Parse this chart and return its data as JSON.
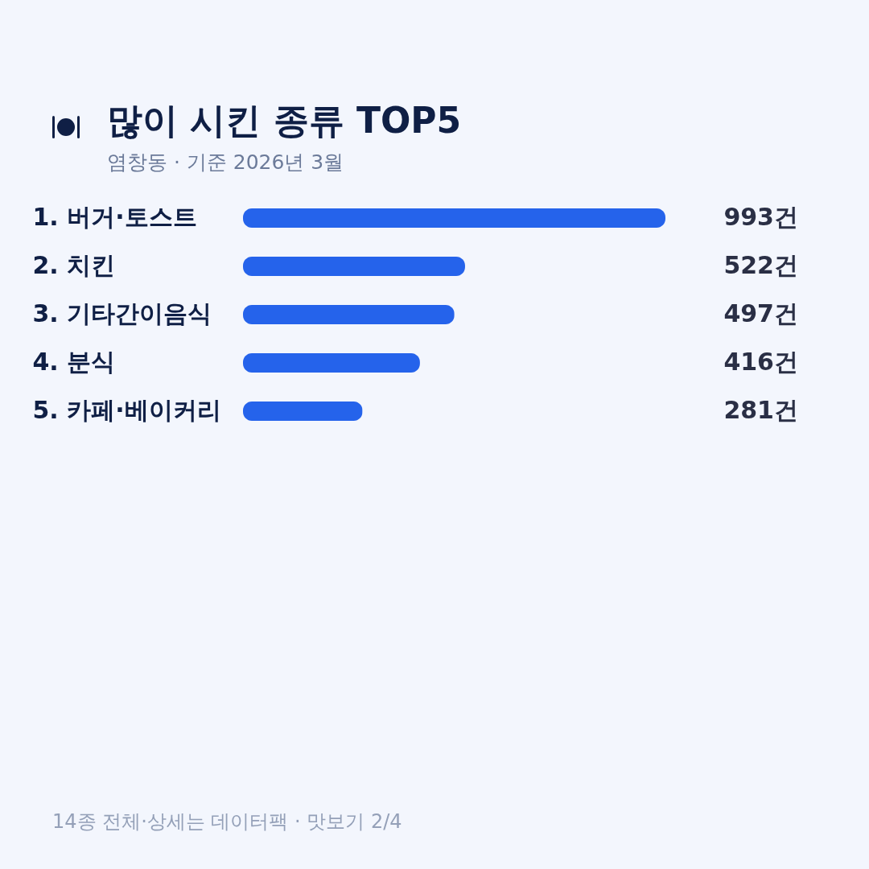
{
  "chart_data": {
    "type": "bar",
    "orientation": "horizontal",
    "title": "많이 시킨 종류 TOP5",
    "subtitle": "염창동 · 기준 2026년 3월",
    "categories": [
      "1. 버거·토스트",
      "2. 치킨",
      "3. 기타간이음식",
      "4. 분식",
      "5. 카페·베이커리"
    ],
    "values": [
      993,
      522,
      497,
      416,
      281
    ],
    "value_labels": [
      "993건",
      "522건",
      "497건",
      "416건",
      "281건"
    ],
    "color": "#2563eb",
    "tick_labels": "y",
    "annotations": [
      "14종 전체·상세는 데이터팩 · 맛보기 2/4"
    ]
  }
}
